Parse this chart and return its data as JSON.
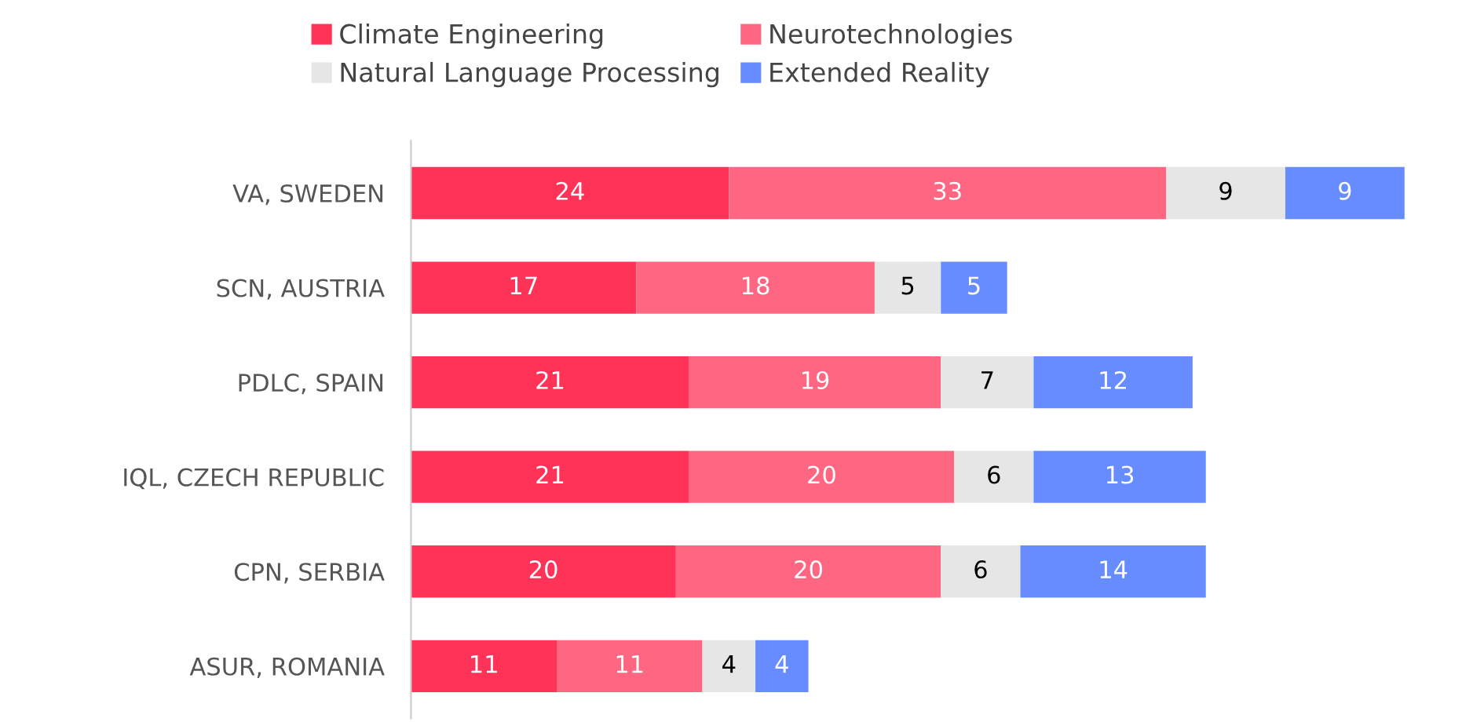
{
  "chart_data": {
    "type": "bar",
    "orientation": "horizontal",
    "stacked": true,
    "data_labels": true,
    "legend": "top",
    "categories": [
      "VA, SWEDEN",
      "SCN, AUSTRIA",
      "PDLC, SPAIN",
      "IQL, CZECH REPUBLIC",
      "CPN, SERBIA",
      "ASUR, ROMANIA"
    ],
    "series": [
      {
        "name": "Climate Engineering",
        "color": "#ff3358",
        "values": [
          24,
          17,
          21,
          21,
          20,
          11
        ]
      },
      {
        "name": "Neurotechnologies",
        "color": "#ff6681",
        "values": [
          33,
          18,
          19,
          20,
          20,
          11
        ]
      },
      {
        "name": "Natural Language Processing",
        "color": "#e6e6e6",
        "values": [
          9,
          5,
          7,
          6,
          6,
          4
        ]
      },
      {
        "name": "Extended Reality",
        "color": "#668cff",
        "values": [
          9,
          5,
          12,
          13,
          14,
          4
        ]
      }
    ]
  }
}
